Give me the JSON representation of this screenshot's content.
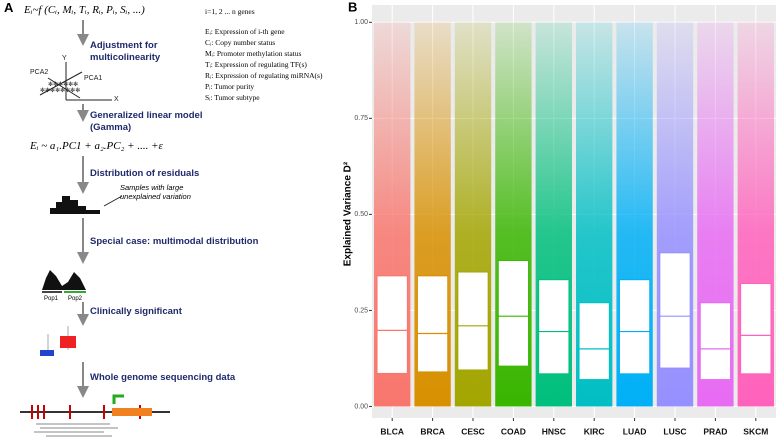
{
  "panel_a": {
    "label": "A",
    "formula": "Eᵢ~f (Cᵢ, Mᵢ, Tᵢ, Rᵢ, Pᵢ, Sᵢ, ...)",
    "index_note": "i=1, 2 ... n genes",
    "definitions": [
      "Eᵢ: Expression of i-th gene",
      "Cᵢ: Copy number status",
      "Mᵢ: Promoter methylation status",
      "Tᵢ: Expression of regulating TF(s)",
      "Rᵢ: Expression of regulating miRNA(s)",
      "Pᵢ: Tumor purity",
      "Sᵢ: Tumor subtype"
    ],
    "steps": [
      "Adjustment for multicolinearity",
      "Generalized linear model (Gamma)",
      "Distribution of residuals",
      "Special case: multimodal distribution",
      "Clinically significant",
      "Whole genome sequencing data"
    ],
    "model_formula": "Eᵢ ~ a₁.PC1 + a₂.PC₂ + .... +ε",
    "annotation": "Samples with large unexplained variation",
    "pca_axes": [
      "PCA2",
      "PCA1",
      "Y",
      "X"
    ],
    "populations": [
      "Pop1",
      "Pop2"
    ]
  },
  "chart_data": {
    "type": "box",
    "panel_label": "B",
    "ylabel": "Explained Variance D²",
    "categories": [
      "BLCA",
      "BRCA",
      "CESC",
      "COAD",
      "HNSC",
      "KIRC",
      "LUAD",
      "LUSC",
      "PRAD",
      "SKCM"
    ],
    "colors": [
      "#F8766D",
      "#D89000",
      "#A3A500",
      "#39B600",
      "#00BF7D",
      "#00BFC4",
      "#00B0F6",
      "#9590FF",
      "#E76BF3",
      "#FF62BC"
    ],
    "min": [
      0,
      0,
      0,
      0,
      0,
      0,
      0,
      0,
      0,
      0
    ],
    "q1": [
      0.086,
      0.09,
      0.095,
      0.105,
      0.085,
      0.07,
      0.085,
      0.1,
      0.07,
      0.085
    ],
    "median": [
      0.198,
      0.19,
      0.21,
      0.235,
      0.195,
      0.15,
      0.195,
      0.235,
      0.15,
      0.185
    ],
    "q3": [
      0.34,
      0.34,
      0.35,
      0.38,
      0.33,
      0.27,
      0.33,
      0.4,
      0.27,
      0.32
    ],
    "max": [
      1,
      1,
      1,
      1,
      1,
      1,
      1,
      1,
      1,
      1
    ],
    "ylim": [
      -0.03,
      1.045
    ],
    "yticks": [
      {
        "value": 0,
        "label": "0.00"
      },
      {
        "value": 0.25,
        "label": "0.25"
      },
      {
        "value": 0.5,
        "label": "0.50"
      },
      {
        "value": 0.75,
        "label": "0.75"
      },
      {
        "value": 1,
        "label": "1.00"
      }
    ],
    "grid": true
  }
}
